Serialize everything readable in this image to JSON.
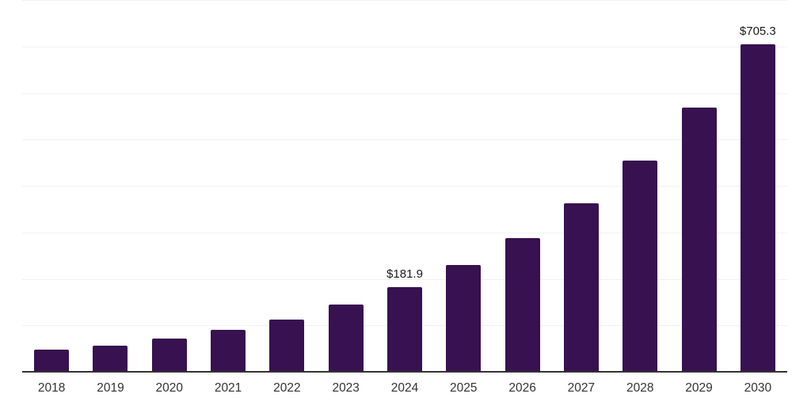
{
  "chart_data": {
    "type": "bar",
    "title": "",
    "xlabel": "",
    "ylabel": "",
    "categories": [
      "2018",
      "2019",
      "2020",
      "2021",
      "2022",
      "2023",
      "2024",
      "2025",
      "2026",
      "2027",
      "2028",
      "2029",
      "2030"
    ],
    "values": [
      47,
      57,
      71,
      90,
      113,
      145,
      181.9,
      229,
      287,
      362,
      455,
      568,
      705.3
    ],
    "data_labels": [
      {
        "category": "2024",
        "text": "$181.9"
      },
      {
        "category": "2030",
        "text": "$705.3"
      }
    ],
    "ylim": [
      0,
      800
    ],
    "gridline_step": 100,
    "grid": "horizontal-only",
    "legend": "none",
    "colors": {
      "bar": "#371150",
      "gridline": "#f2f0f4",
      "axis_line": "#333333",
      "data_label_text": "#1a1a1a",
      "tick_label_text": "#333333",
      "background": "#ffffff"
    }
  }
}
